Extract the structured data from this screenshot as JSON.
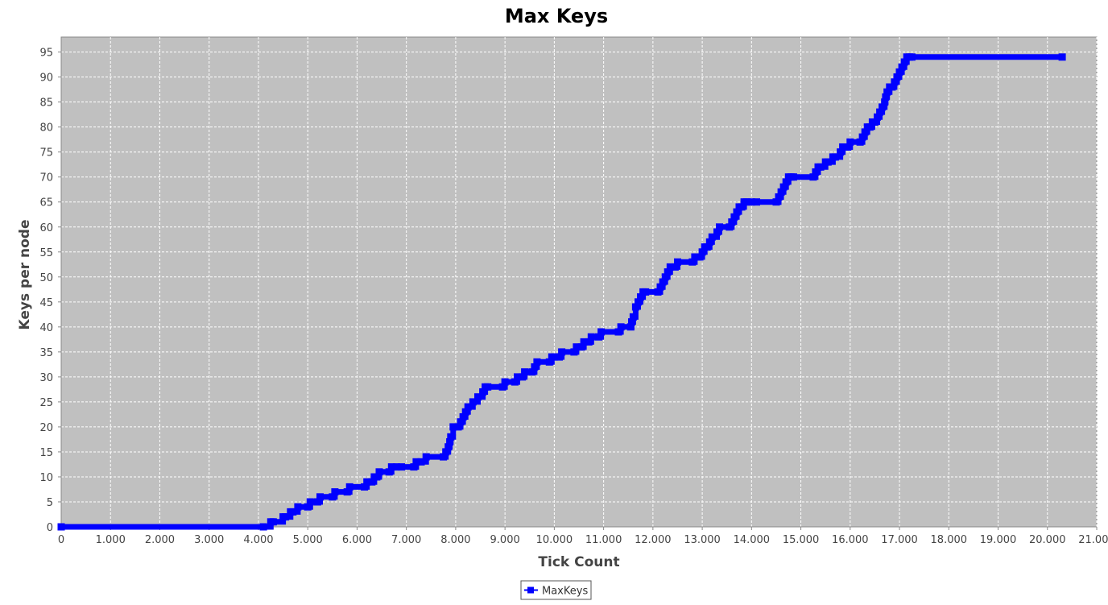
{
  "chart_data": {
    "type": "line",
    "title": "Max Keys",
    "xlabel": "Tick Count",
    "ylabel": "Keys per node",
    "xlim": [
      0,
      21000
    ],
    "ylim": [
      0,
      98
    ],
    "x_ticks": [
      0,
      1000,
      2000,
      3000,
      4000,
      5000,
      6000,
      7000,
      8000,
      9000,
      10000,
      11000,
      12000,
      13000,
      14000,
      15000,
      16000,
      17000,
      18000,
      19000,
      20000,
      21000
    ],
    "x_tick_labels": [
      "0",
      "1.000",
      "2.000",
      "3.000",
      "4.000",
      "5.000",
      "6.000",
      "7.000",
      "8.000",
      "9.000",
      "10.000",
      "11.000",
      "12.000",
      "13.000",
      "14.000",
      "15.000",
      "16.000",
      "17.000",
      "18.000",
      "19.000",
      "20.000",
      "21.000"
    ],
    "y_ticks": [
      0,
      5,
      10,
      15,
      20,
      25,
      30,
      35,
      40,
      45,
      50,
      55,
      60,
      65,
      70,
      75,
      80,
      85,
      90,
      95
    ],
    "y_tick_labels": [
      "0",
      "5",
      "10",
      "15",
      "20",
      "25",
      "30",
      "35",
      "40",
      "45",
      "50",
      "55",
      "60",
      "65",
      "70",
      "75",
      "80",
      "85",
      "90",
      "95"
    ],
    "grid": true,
    "legend_position": "bottom-center",
    "colors": {
      "series": "#0000ff",
      "plot_background": "#c0c0c0",
      "grid": "#ffffff"
    },
    "series": [
      {
        "name": "MaxKeys",
        "x": [
          0,
          4100,
          4250,
          4300,
          4500,
          4550,
          4650,
          4700,
          4800,
          5000,
          5050,
          5200,
          5250,
          5500,
          5550,
          5800,
          5850,
          6150,
          6200,
          6300,
          6350,
          6400,
          6450,
          6650,
          6700,
          6800,
          6900,
          7150,
          7200,
          7300,
          7400,
          7750,
          7800,
          7850,
          7880,
          7900,
          7950,
          8050,
          8100,
          8150,
          8200,
          8250,
          8350,
          8450,
          8550,
          8600,
          8650,
          8950,
          9000,
          9200,
          9250,
          9350,
          9400,
          9550,
          9600,
          9650,
          9900,
          9950,
          10000,
          10100,
          10150,
          10400,
          10450,
          10550,
          10600,
          10700,
          10750,
          10900,
          10950,
          11300,
          11350,
          11550,
          11570,
          11600,
          11650,
          11700,
          11750,
          11800,
          11850,
          12100,
          12150,
          12200,
          12250,
          12300,
          12350,
          12450,
          12500,
          12800,
          12850,
          12950,
          13000,
          13050,
          13100,
          13150,
          13200,
          13300,
          13350,
          13550,
          13600,
          13650,
          13700,
          13750,
          13800,
          13850,
          13900,
          14000,
          14100,
          14500,
          14550,
          14600,
          14650,
          14700,
          14750,
          14800,
          14850,
          15250,
          15300,
          15350,
          15400,
          15500,
          15550,
          15650,
          15700,
          15800,
          15850,
          15950,
          16000,
          16200,
          16250,
          16300,
          16350,
          16400,
          16450,
          16500,
          16550,
          16600,
          16650,
          16700,
          16720,
          16750,
          16800,
          16850,
          16900,
          16950,
          17000,
          17050,
          17100,
          17150,
          17200,
          17250,
          20300
        ],
        "values": [
          0,
          0,
          1,
          1,
          2,
          2,
          3,
          3,
          4,
          4,
          5,
          5,
          6,
          6,
          7,
          7,
          8,
          8,
          9,
          9,
          10,
          10,
          11,
          11,
          12,
          12,
          12,
          12,
          13,
          13,
          14,
          14,
          15,
          16,
          17,
          18,
          20,
          20,
          21,
          22,
          23,
          24,
          25,
          26,
          27,
          28,
          28,
          28,
          29,
          29,
          30,
          30,
          31,
          31,
          32,
          33,
          33,
          34,
          34,
          34,
          35,
          35,
          36,
          36,
          37,
          37,
          38,
          38,
          39,
          39,
          40,
          40,
          41,
          42,
          44,
          45,
          46,
          47,
          47,
          47,
          48,
          49,
          50,
          51,
          52,
          52,
          53,
          53,
          54,
          54,
          55,
          56,
          56,
          57,
          58,
          59,
          60,
          60,
          61,
          62,
          63,
          64,
          64,
          65,
          65,
          65,
          65,
          65,
          66,
          67,
          68,
          69,
          70,
          70,
          70,
          70,
          71,
          72,
          72,
          73,
          73,
          74,
          74,
          75,
          76,
          76,
          77,
          77,
          78,
          79,
          80,
          80,
          81,
          81,
          82,
          83,
          84,
          85,
          86,
          87,
          88,
          88,
          89,
          90,
          91,
          92,
          93,
          94,
          94,
          94,
          94
        ]
      }
    ]
  }
}
